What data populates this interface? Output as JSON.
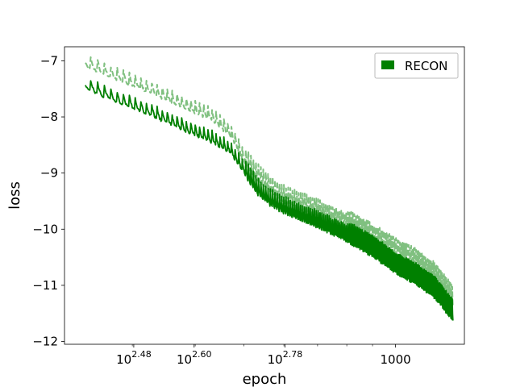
{
  "chart_data": {
    "type": "line",
    "title": "",
    "xlabel": "epoch",
    "ylabel": "loss",
    "x_scale": "log",
    "xlim": [
      220,
      1370
    ],
    "ylim": [
      -12.05,
      -6.75
    ],
    "grid": false,
    "legend": {
      "placement": "top-right",
      "entries": [
        {
          "label": "RECON",
          "color": "#008000"
        }
      ]
    },
    "x_ticks": [
      {
        "value": 302,
        "base": "10",
        "exp": "2.48"
      },
      {
        "value": 398,
        "base": "10",
        "exp": "2.60"
      },
      {
        "value": 603,
        "base": "10",
        "exp": "2.78"
      },
      {
        "value": 1000,
        "base": "1000",
        "exp": ""
      }
    ],
    "y_ticks": [
      {
        "value": -7,
        "label": "−7"
      },
      {
        "value": -8,
        "label": "−8"
      },
      {
        "value": -9,
        "label": "−9"
      },
      {
        "value": -10,
        "label": "−10"
      },
      {
        "value": -11,
        "label": "−11"
      },
      {
        "value": -12,
        "label": "−12"
      }
    ],
    "series": [
      {
        "name": "RECON",
        "color": "#008000",
        "style": "solid",
        "points": [
          [
            242,
            -7.45
          ],
          [
            280,
            -7.7
          ],
          [
            330,
            -7.95
          ],
          [
            380,
            -8.2
          ],
          [
            430,
            -8.4
          ],
          [
            470,
            -8.6
          ],
          [
            500,
            -8.95
          ],
          [
            530,
            -9.3
          ],
          [
            560,
            -9.5
          ],
          [
            600,
            -9.65
          ],
          [
            700,
            -9.9
          ],
          [
            800,
            -10.15
          ],
          [
            900,
            -10.4
          ],
          [
            1000,
            -10.7
          ],
          [
            1100,
            -10.9
          ],
          [
            1200,
            -11.15
          ],
          [
            1300,
            -11.55
          ]
        ]
      },
      {
        "name": "",
        "color": "#80c080",
        "style": "dashed",
        "points": [
          [
            242,
            -7.05
          ],
          [
            280,
            -7.3
          ],
          [
            330,
            -7.55
          ],
          [
            380,
            -7.8
          ],
          [
            430,
            -8.0
          ],
          [
            470,
            -8.3
          ],
          [
            500,
            -8.75
          ],
          [
            530,
            -9.05
          ],
          [
            560,
            -9.25
          ],
          [
            600,
            -9.45
          ],
          [
            700,
            -9.7
          ],
          [
            800,
            -9.95
          ],
          [
            900,
            -10.2
          ],
          [
            1000,
            -10.45
          ],
          [
            1100,
            -10.65
          ],
          [
            1200,
            -10.9
          ],
          [
            1300,
            -11.3
          ]
        ]
      }
    ]
  }
}
